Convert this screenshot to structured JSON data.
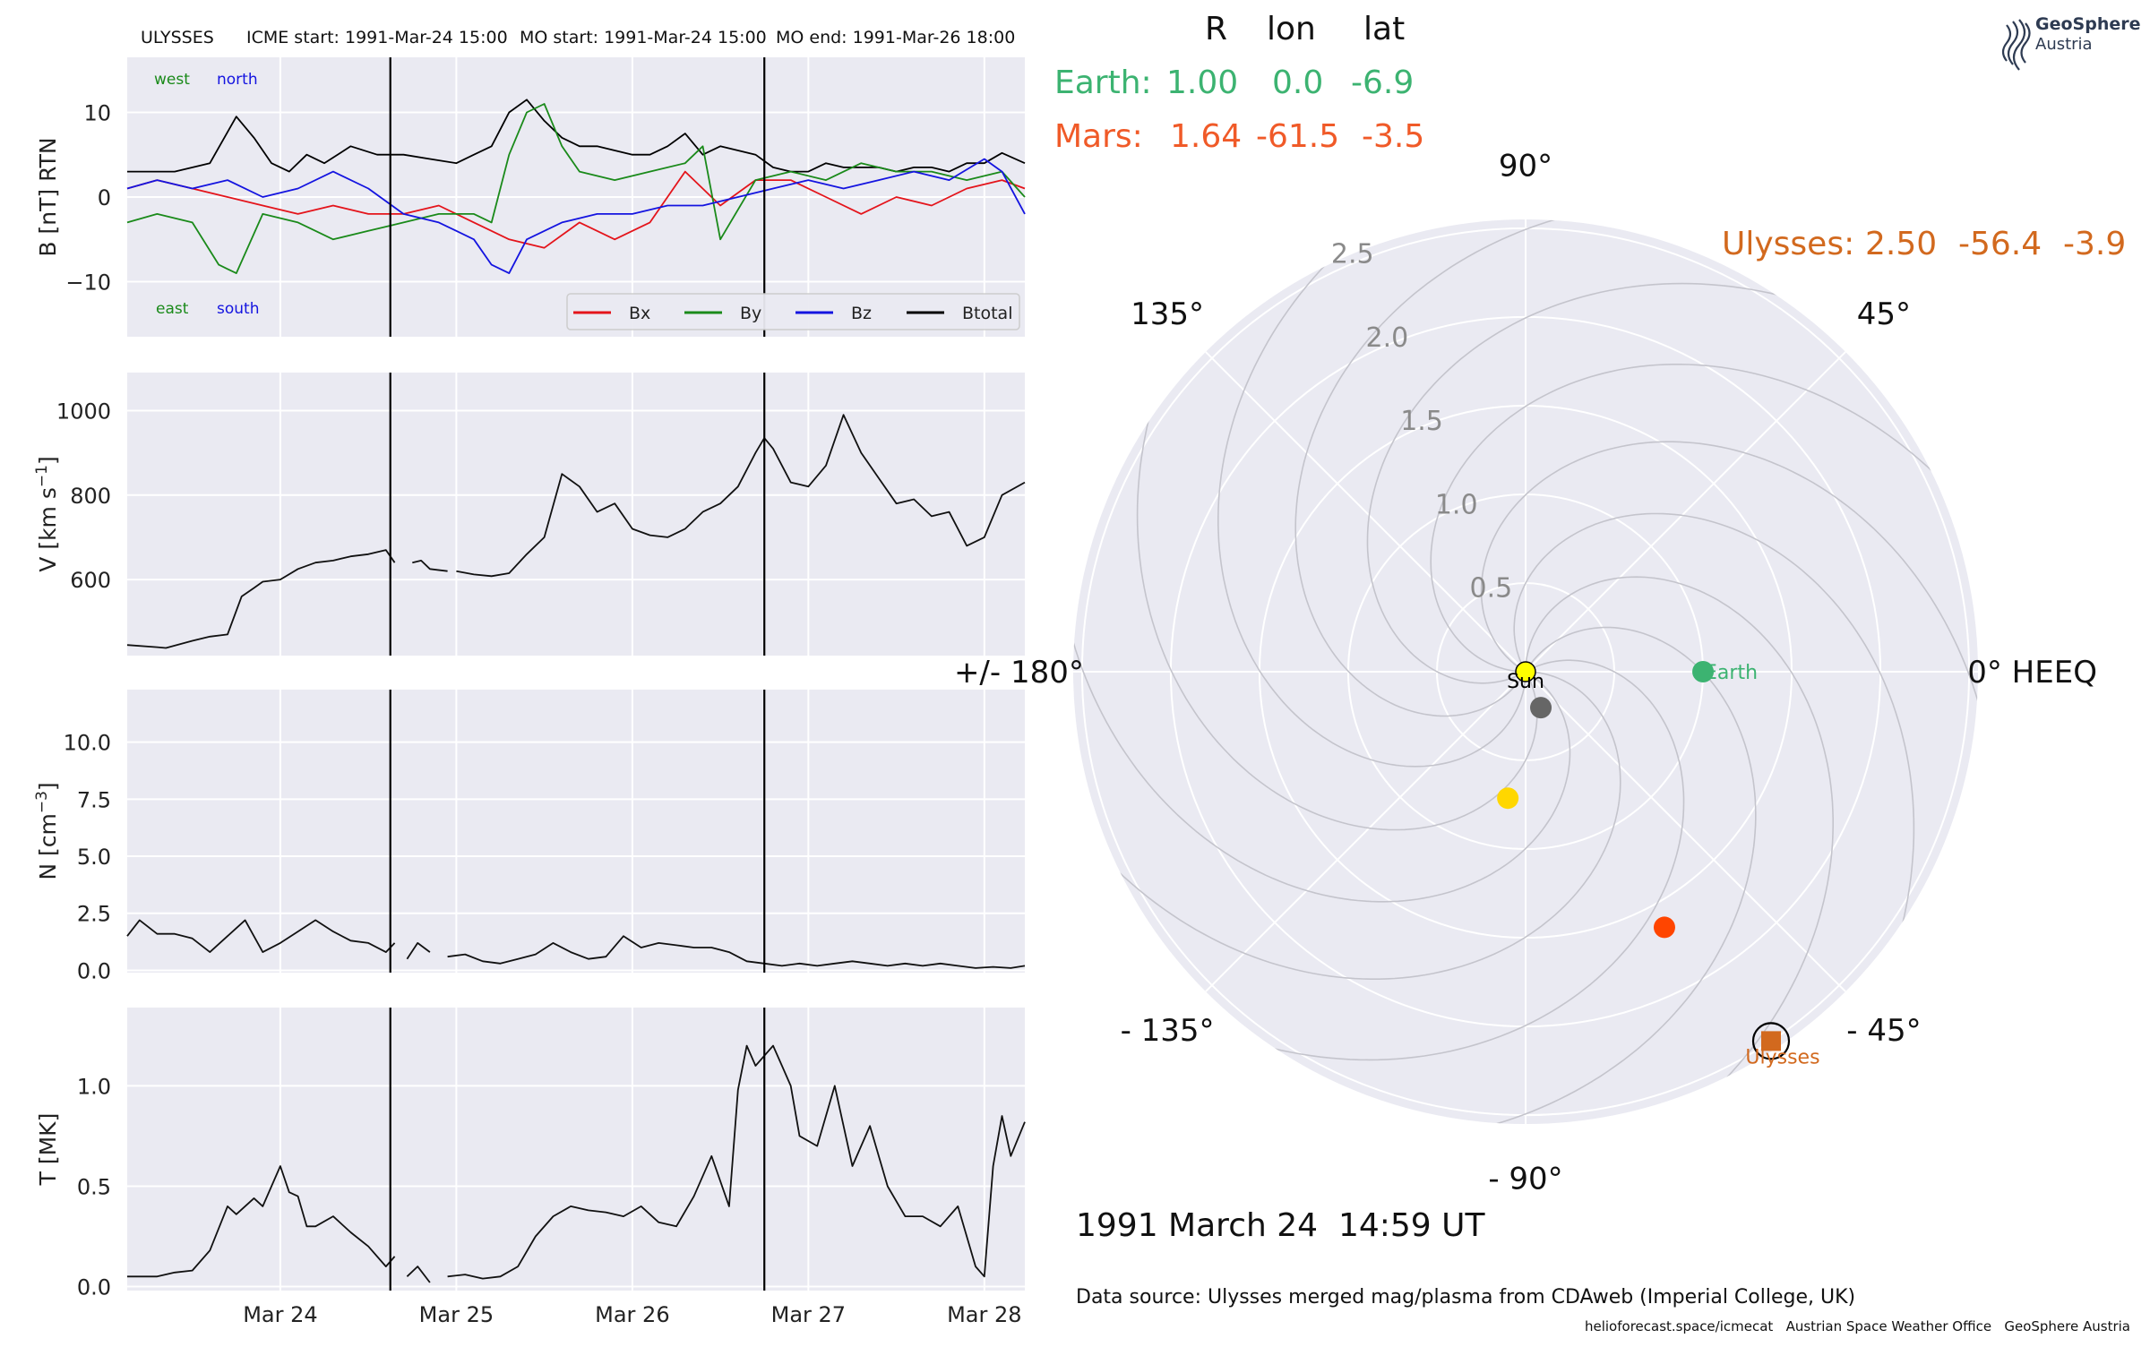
{
  "header": {
    "spacecraft": "ULYSSES",
    "icme_start": "ICME start: 1991-Mar-24 15:00",
    "mo_start": "MO start: 1991-Mar-24 15:00",
    "mo_end": "MO end: 1991-Mar-26 18:00"
  },
  "colors": {
    "panel_bg": "#eaeaf2",
    "earth": "#3cb371",
    "mars": "#f05a28",
    "ulysses": "#d2691e",
    "bx": "#e4141b",
    "by": "#1a8a1a",
    "bz": "#1414e0",
    "btotal": "#000000"
  },
  "timeseries_panels": {
    "x_axis": {
      "ticks": [
        "Mar 24",
        "Mar 25",
        "Mar 26",
        "Mar 27",
        "Mar 28"
      ],
      "range_days": [
        23.13,
        28.23
      ]
    },
    "boundaries_day": [
      24.625,
      26.75
    ],
    "b_panel": {
      "ylabel": "B [nT] RTN",
      "ylim": [
        -16.5,
        16.5
      ],
      "ticks": [
        "10",
        "0",
        "−10"
      ],
      "tick_values": [
        10,
        0,
        -10
      ],
      "direction_labels": {
        "west": "west",
        "north": "north",
        "east": "east",
        "south": "south"
      },
      "legend": [
        {
          "key": "bx",
          "label": "Bx"
        },
        {
          "key": "by",
          "label": "By"
        },
        {
          "key": "bz",
          "label": "Bz"
        },
        {
          "key": "btotal",
          "label": "Btotal"
        }
      ]
    },
    "v_panel": {
      "ylabel": "V [km s",
      "ylabel_sup": "−1",
      "ylabel_end": "]",
      "ylim": [
        420,
        1090
      ],
      "ticks": [
        "1000",
        "800",
        "600"
      ],
      "tick_values": [
        1000,
        800,
        600
      ]
    },
    "n_panel": {
      "ylabel": "N [cm",
      "ylabel_sup": "−3",
      "ylabel_end": "]",
      "ylim": [
        -0.1,
        12.3
      ],
      "ticks": [
        "10.0",
        "7.5",
        "5.0",
        "2.5",
        "0.0"
      ],
      "tick_values": [
        10,
        7.5,
        5,
        2.5,
        0
      ]
    },
    "t_panel": {
      "ylabel": "T [MK]",
      "ylim": [
        -0.02,
        1.39
      ],
      "ticks": [
        "1.0",
        "0.5",
        "0.0"
      ],
      "tick_values": [
        1.0,
        0.5,
        0.0
      ]
    }
  },
  "chart_data": [
    {
      "type": "line",
      "panel": "b_panel",
      "ylabel": "B [nT] RTN",
      "x_unit": "day of March 1991",
      "series": [
        {
          "name": "Btotal",
          "x": [
            23.13,
            23.4,
            23.6,
            23.75,
            23.85,
            23.95,
            24.05,
            24.15,
            24.25,
            24.4,
            24.55,
            24.7,
            24.85,
            25.0,
            25.1,
            25.2,
            25.3,
            25.4,
            25.5,
            25.6,
            25.7,
            25.8,
            25.9,
            26.0,
            26.1,
            26.2,
            26.3,
            26.4,
            26.5,
            26.6,
            26.7,
            26.8,
            26.9,
            27.0,
            27.1,
            27.2,
            27.3,
            27.4,
            27.5,
            27.6,
            27.7,
            27.8,
            27.9,
            28.0,
            28.1,
            28.23
          ],
          "y": [
            3,
            3,
            4,
            9.5,
            7,
            4,
            3,
            5,
            4,
            6,
            5,
            5,
            4.5,
            4,
            5,
            6,
            10,
            11.5,
            9,
            7,
            6,
            6,
            5.5,
            5,
            5,
            6,
            7.5,
            5,
            6,
            5.5,
            5,
            3.5,
            3,
            3,
            4,
            3.5,
            3.5,
            3.5,
            3,
            3.5,
            3.5,
            3,
            4,
            4,
            5.2,
            4
          ]
        },
        {
          "name": "Bx",
          "x": [
            23.13,
            23.3,
            23.5,
            23.7,
            23.9,
            24.1,
            24.3,
            24.5,
            24.7,
            24.9,
            25.1,
            25.3,
            25.5,
            25.7,
            25.9,
            26.1,
            26.3,
            26.5,
            26.7,
            26.9,
            27.1,
            27.3,
            27.5,
            27.7,
            27.9,
            28.1,
            28.23
          ],
          "y": [
            1,
            2,
            1,
            0,
            -1,
            -2,
            -1,
            -2,
            -2,
            -1,
            -3,
            -5,
            -6,
            -3,
            -5,
            -3,
            3,
            -1,
            2,
            2,
            0,
            -2,
            0,
            -1,
            1,
            2,
            1
          ]
        },
        {
          "name": "By",
          "x": [
            23.13,
            23.3,
            23.5,
            23.65,
            23.75,
            23.9,
            24.1,
            24.3,
            24.5,
            24.7,
            24.9,
            25.1,
            25.2,
            25.3,
            25.4,
            25.5,
            25.6,
            25.7,
            25.9,
            26.1,
            26.3,
            26.4,
            26.5,
            26.7,
            26.9,
            27.1,
            27.3,
            27.5,
            27.7,
            27.9,
            28.1,
            28.23
          ],
          "y": [
            -3,
            -2,
            -3,
            -8,
            -9,
            -2,
            -3,
            -5,
            -4,
            -3,
            -2,
            -2,
            -3,
            5,
            10,
            11,
            6,
            3,
            2,
            3,
            4,
            6,
            -5,
            2,
            3,
            2,
            4,
            3,
            3,
            2,
            3,
            0
          ]
        },
        {
          "name": "Bz",
          "x": [
            23.13,
            23.3,
            23.5,
            23.7,
            23.9,
            24.1,
            24.3,
            24.5,
            24.7,
            24.9,
            25.1,
            25.2,
            25.3,
            25.4,
            25.6,
            25.8,
            26.0,
            26.2,
            26.4,
            26.6,
            26.8,
            27.0,
            27.2,
            27.4,
            27.6,
            27.8,
            28.0,
            28.1,
            28.23
          ],
          "y": [
            1,
            2,
            1,
            2,
            0,
            1,
            3,
            1,
            -2,
            -3,
            -5,
            -8,
            -9,
            -5,
            -3,
            -2,
            -2,
            -1,
            -1,
            0,
            1,
            2,
            1,
            2,
            3,
            2,
            4.5,
            3,
            -2
          ]
        }
      ]
    },
    {
      "type": "line",
      "panel": "v_panel",
      "ylabel": "V [km s−1]",
      "x_unit": "day of March 1991",
      "segments": [
        {
          "x": [
            23.13,
            23.3,
            23.35,
            23.5,
            23.6,
            23.7,
            23.78,
            23.85,
            23.9,
            24.0,
            24.1,
            24.2,
            24.3,
            24.4,
            24.5,
            24.6,
            24.65
          ],
          "y": [
            445,
            440,
            438,
            455,
            465,
            470,
            560,
            580,
            595,
            600,
            625,
            640,
            645,
            655,
            660,
            670,
            640
          ]
        },
        {
          "x": [
            24.75,
            24.8,
            24.85,
            24.95
          ],
          "y": [
            640,
            645,
            625,
            620
          ]
        },
        {
          "x": [
            25.0,
            25.1,
            25.2,
            25.3,
            25.4,
            25.5,
            25.6,
            25.7,
            25.8,
            25.9,
            26.0,
            26.1,
            26.2,
            26.3,
            26.4,
            26.5,
            26.6,
            26.7,
            26.75,
            26.8,
            26.9,
            27.0,
            27.1,
            27.2,
            27.3,
            27.4,
            27.5,
            27.6,
            27.7,
            27.8,
            27.9,
            28.0,
            28.1,
            28.23
          ],
          "y": [
            620,
            612,
            608,
            615,
            660,
            700,
            850,
            820,
            760,
            780,
            720,
            705,
            700,
            720,
            760,
            780,
            820,
            900,
            935,
            910,
            830,
            820,
            870,
            990,
            900,
            840,
            780,
            790,
            750,
            760,
            680,
            700,
            800,
            830
          ]
        }
      ]
    },
    {
      "type": "line",
      "panel": "n_panel",
      "ylabel": "N [cm−3]",
      "x_unit": "day of March 1991",
      "segments": [
        {
          "x": [
            23.13,
            23.2,
            23.3,
            23.4,
            23.5,
            23.6,
            23.7,
            23.8,
            23.9,
            24.0,
            24.1,
            24.2,
            24.3,
            24.4,
            24.5,
            24.6,
            24.65
          ],
          "y": [
            1.5,
            2.2,
            1.6,
            1.6,
            1.4,
            0.8,
            1.5,
            2.2,
            0.8,
            1.2,
            1.7,
            2.2,
            1.7,
            1.3,
            1.2,
            0.8,
            1.2
          ]
        },
        {
          "x": [
            24.72,
            24.78,
            24.85
          ],
          "y": [
            0.5,
            1.2,
            0.8
          ]
        },
        {
          "x": [
            24.95,
            25.05,
            25.15,
            25.25,
            25.35,
            25.45,
            25.55,
            25.65,
            25.75,
            25.85,
            25.95,
            26.05,
            26.15,
            26.25,
            26.35,
            26.45,
            26.55,
            26.65,
            26.75,
            26.85,
            26.95,
            27.05,
            27.15,
            27.25,
            27.35,
            27.45,
            27.55,
            27.65,
            27.75,
            27.85,
            27.95,
            28.05,
            28.15,
            28.23
          ],
          "y": [
            0.6,
            0.7,
            0.4,
            0.3,
            0.5,
            0.7,
            1.2,
            0.8,
            0.5,
            0.6,
            1.5,
            1.0,
            1.2,
            1.1,
            1.0,
            1.0,
            0.8,
            0.4,
            0.3,
            0.2,
            0.3,
            0.2,
            0.3,
            0.4,
            0.3,
            0.2,
            0.3,
            0.2,
            0.3,
            0.2,
            0.1,
            0.15,
            0.1,
            0.2
          ]
        }
      ]
    },
    {
      "type": "line",
      "panel": "t_panel",
      "ylabel": "T [MK]",
      "x_unit": "day of March 1991",
      "segments": [
        {
          "x": [
            23.13,
            23.3,
            23.4,
            23.5,
            23.6,
            23.7,
            23.75,
            23.85,
            23.9,
            24.0,
            24.05,
            24.1,
            24.15,
            24.2,
            24.3,
            24.4,
            24.5,
            24.6,
            24.65
          ],
          "y": [
            0.05,
            0.05,
            0.07,
            0.08,
            0.18,
            0.4,
            0.36,
            0.44,
            0.4,
            0.6,
            0.47,
            0.45,
            0.3,
            0.3,
            0.35,
            0.27,
            0.2,
            0.1,
            0.15
          ]
        },
        {
          "x": [
            24.72,
            24.78,
            24.85
          ],
          "y": [
            0.05,
            0.1,
            0.02
          ]
        },
        {
          "x": [
            24.95,
            25.05,
            25.15,
            25.25,
            25.35,
            25.45,
            25.55,
            25.65,
            25.75,
            25.85,
            25.95,
            26.05,
            26.15,
            26.25,
            26.35,
            26.45,
            26.55,
            26.6,
            26.65,
            26.7,
            26.75,
            26.8,
            26.85,
            26.9,
            26.95,
            27.05,
            27.15,
            27.25,
            27.35,
            27.45,
            27.55,
            27.65,
            27.75,
            27.85,
            27.95,
            28.0,
            28.05,
            28.1,
            28.15,
            28.23
          ],
          "y": [
            0.05,
            0.06,
            0.04,
            0.05,
            0.1,
            0.25,
            0.35,
            0.4,
            0.38,
            0.37,
            0.35,
            0.4,
            0.32,
            0.3,
            0.45,
            0.65,
            0.4,
            0.98,
            1.2,
            1.1,
            1.15,
            1.2,
            1.1,
            1.0,
            0.75,
            0.7,
            1.0,
            0.6,
            0.8,
            0.5,
            0.35,
            0.35,
            0.3,
            0.4,
            0.1,
            0.05,
            0.6,
            0.85,
            0.65,
            0.82
          ]
        }
      ]
    },
    {
      "type": "scatter",
      "projection": "polar",
      "frame": "HEEQ",
      "r_ticks": [
        "0.5",
        "1.0",
        "1.5",
        "2.0",
        "2.5"
      ],
      "r_tick_values": [
        0.5,
        1.0,
        1.5,
        2.0,
        2.5
      ],
      "rmax": 2.55,
      "angle_labels": [
        {
          "deg": 0,
          "text": "0° HEEQ"
        },
        {
          "deg": 45,
          "text": "45°"
        },
        {
          "deg": 90,
          "text": "90°"
        },
        {
          "deg": 135,
          "text": "135°"
        },
        {
          "deg": 180,
          "text": "+/- 180°"
        },
        {
          "deg": -135,
          "text": "- 135°"
        },
        {
          "deg": -90,
          "text": "- 90°"
        },
        {
          "deg": -45,
          "text": "- 45°"
        }
      ],
      "bodies": [
        {
          "label": "Sun",
          "r": 0.0,
          "lon_deg": 0.0,
          "color": "#ffff00",
          "marker": "circle-outline"
        },
        {
          "label": "Earth",
          "r": 1.0,
          "lon_deg": 0.0,
          "color": "#3cb371",
          "marker": "circle"
        },
        {
          "label": "",
          "r": 0.22,
          "lon_deg": -67,
          "color": "#666666",
          "marker": "circle"
        },
        {
          "label": "",
          "r": 0.72,
          "lon_deg": -98,
          "color": "#ffd700",
          "marker": "circle"
        },
        {
          "label": "",
          "r": 1.64,
          "lon_deg": -61.5,
          "color": "#ff4500",
          "marker": "circle"
        },
        {
          "label": "Ulysses",
          "r": 2.5,
          "lon_deg": -56.4,
          "color": "#d2691e",
          "marker": "square"
        }
      ],
      "position_table": {
        "headers": [
          "R",
          "lon",
          "lat"
        ],
        "rows": [
          {
            "name": "Earth:",
            "R": "1.00",
            "lon": "0.0",
            "lat": "-6.9",
            "color": "#3cb371"
          },
          {
            "name": "Mars:",
            "R": "1.64",
            "lon": "-61.5",
            "lat": "-3.5",
            "color": "#f05a28"
          }
        ],
        "ulysses_row": {
          "name": "Ulysses:",
          "R": "2.50",
          "lon": "-56.4",
          "lat": "-3.9",
          "color": "#d2691e"
        }
      }
    }
  ],
  "footer": {
    "datetime": "1991 March 24  14:59 UT",
    "source": "Data source: Ulysses merged mag/plasma from CDAweb (Imperial College, UK)",
    "credits": "helioforecast.space/icmecat   Austrian Space Weather Office   GeoSphere Austria"
  },
  "logo": {
    "line1": "GeoSphere",
    "line2": "Austria"
  }
}
